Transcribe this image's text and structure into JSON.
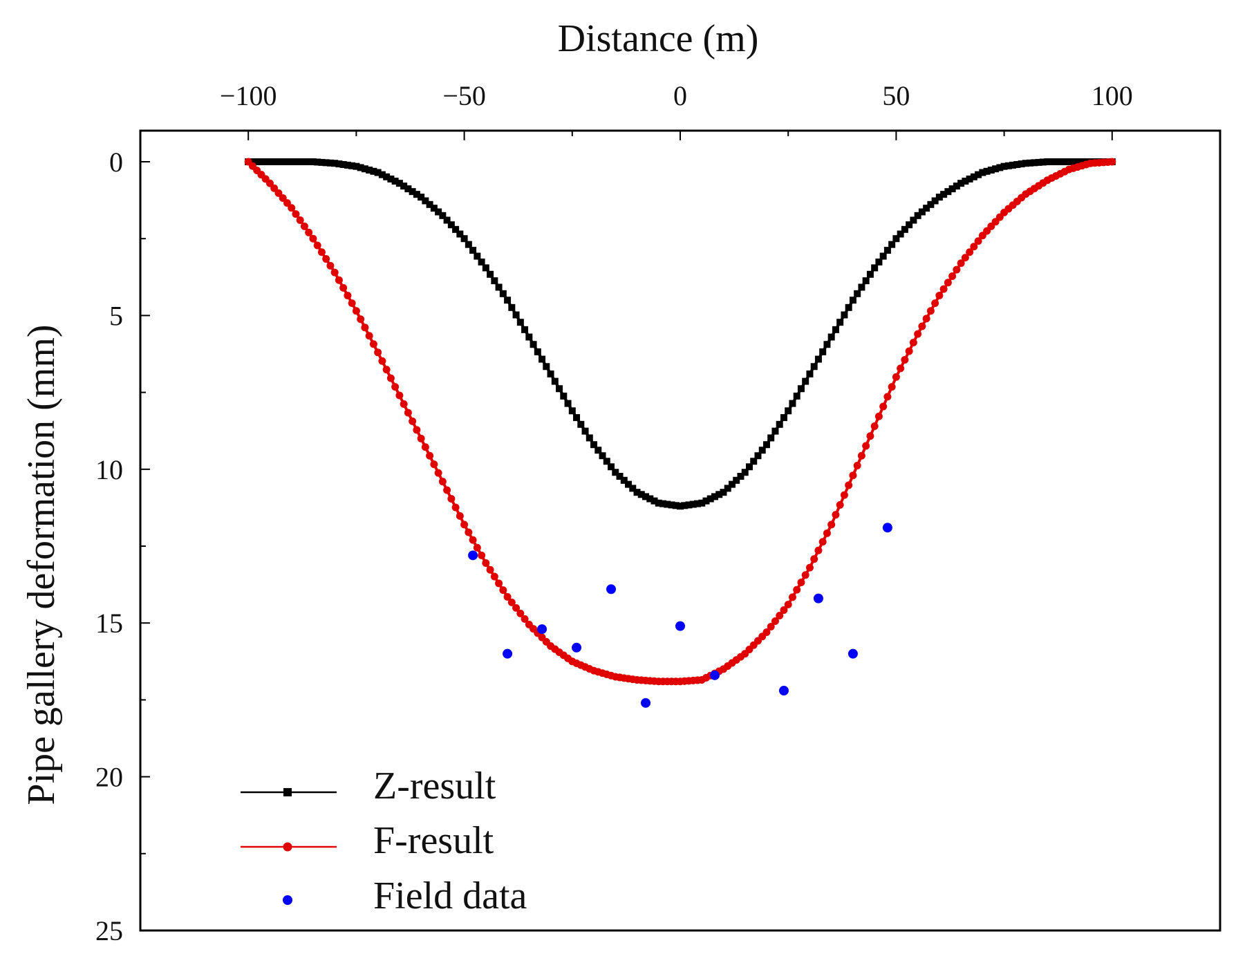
{
  "chart_data": {
    "type": "line",
    "title": "",
    "xlabel": "Distance (m)",
    "ylabel": "Pipe gallery deformation (mm)",
    "xlim": [
      -125,
      125
    ],
    "ylim": [
      0,
      25
    ],
    "y_inverted": true,
    "x_axis_position": "top",
    "grid": false,
    "xticks": [
      -100,
      -50,
      0,
      50,
      100
    ],
    "xtick_labels": [
      "−100",
      "−50",
      "0",
      "50",
      "100"
    ],
    "yticks": [
      0,
      5,
      10,
      15,
      20,
      25
    ],
    "ytick_labels": [
      "0",
      "5",
      "10",
      "15",
      "20",
      "25"
    ],
    "legend_position": "bottom-left",
    "series": [
      {
        "name": "Z-result",
        "style": "line-square",
        "color": "#000000",
        "x": [
          -100,
          -95,
          -90,
          -85,
          -80,
          -75,
          -70,
          -65,
          -60,
          -55,
          -50,
          -45,
          -40,
          -35,
          -30,
          -25,
          -20,
          -15,
          -10,
          -5,
          0,
          5,
          10,
          15,
          20,
          25,
          30,
          35,
          40,
          45,
          50,
          55,
          60,
          65,
          70,
          75,
          80,
          85,
          90,
          95,
          100
        ],
        "y": [
          0.0,
          0.0,
          0.0,
          0.0,
          0.05,
          0.15,
          0.35,
          0.7,
          1.15,
          1.75,
          2.5,
          3.45,
          4.5,
          5.7,
          6.9,
          8.1,
          9.2,
          10.1,
          10.75,
          11.1,
          11.2,
          11.1,
          10.75,
          10.1,
          9.2,
          8.1,
          6.9,
          5.7,
          4.5,
          3.45,
          2.5,
          1.75,
          1.15,
          0.7,
          0.35,
          0.15,
          0.05,
          0.0,
          0.0,
          0.0,
          0.0
        ]
      },
      {
        "name": "F-result",
        "style": "line-circle",
        "color": "#e00000",
        "x": [
          -100,
          -95,
          -90,
          -85,
          -80,
          -75,
          -70,
          -65,
          -60,
          -55,
          -50,
          -45,
          -40,
          -35,
          -30,
          -25,
          -20,
          -15,
          -10,
          -5,
          0,
          5,
          10,
          15,
          20,
          25,
          30,
          35,
          40,
          45,
          50,
          55,
          60,
          65,
          70,
          75,
          80,
          85,
          90,
          95,
          100
        ],
        "y": [
          0.0,
          0.7,
          1.5,
          2.5,
          3.6,
          4.85,
          6.2,
          7.6,
          9.0,
          10.4,
          11.8,
          13.05,
          14.15,
          15.05,
          15.75,
          16.25,
          16.55,
          16.75,
          16.85,
          16.9,
          16.9,
          16.85,
          16.5,
          16.0,
          15.3,
          14.4,
          13.2,
          11.8,
          10.2,
          8.6,
          7.0,
          5.6,
          4.35,
          3.3,
          2.4,
          1.65,
          1.05,
          0.6,
          0.25,
          0.05,
          0.0
        ]
      },
      {
        "name": "Field data",
        "style": "points",
        "color": "#0000ff",
        "x": [
          -48,
          -40,
          -32,
          -24,
          -16,
          -8,
          0,
          8,
          24,
          32,
          40,
          48
        ],
        "y": [
          12.8,
          16.0,
          15.2,
          15.8,
          13.9,
          17.6,
          15.1,
          16.7,
          17.2,
          14.2,
          16.0,
          11.9
        ]
      }
    ]
  }
}
